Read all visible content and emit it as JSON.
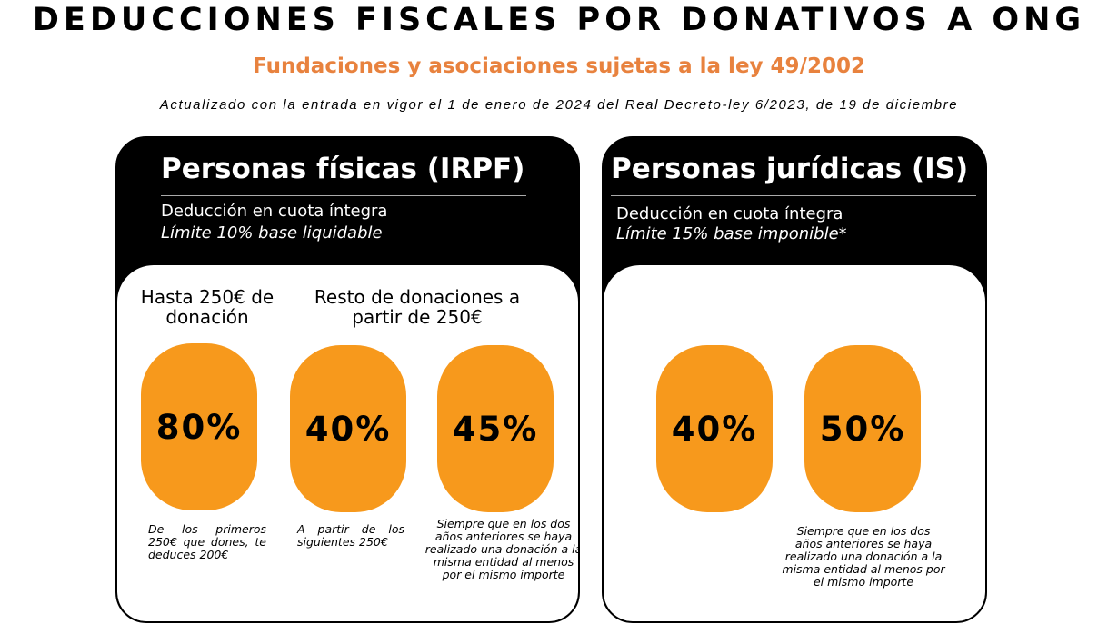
{
  "header": {
    "title": "DEDUCCIONES FISCALES POR DONATIVOS A ONG",
    "subtitle": "Fundaciones y asociaciones sujetas a la ley 49/2002",
    "note": "Actualizado con la entrada en vigor el 1 de enero de 2024 del Real Decreto-ley 6/2023, de 19 de diciembre"
  },
  "colors": {
    "accent": "#f7991c",
    "subtitle": "#e8823e"
  },
  "irpf": {
    "title": "Personas físicas (IRPF)",
    "line1": "Deducción en cuota íntegra",
    "line2": "Límite 10% base liquidable",
    "caption1": "Hasta 250€ de donación",
    "caption2": "Resto de donaciones a partir de 250€",
    "rates": [
      {
        "value": "80%",
        "desc": "De los primeros 250€ que dones, te deduces 200€"
      },
      {
        "value": "40%",
        "desc": "A partir de los siguientes 250€"
      },
      {
        "value": "45%",
        "desc": "Siempre que en los dos años anteriores se haya realizado una donación a la misma entidad al menos por el mismo importe"
      }
    ]
  },
  "is": {
    "title": "Personas jurídicas (IS)",
    "line1": "Deducción en cuota íntegra",
    "line2": "Límite 15% base imponible*",
    "rates": [
      {
        "value": "40%"
      },
      {
        "value": "50%",
        "desc": "Siempre que en los dos años anteriores se haya realizado una donación a la misma entidad al menos por el mismo importe"
      }
    ]
  }
}
